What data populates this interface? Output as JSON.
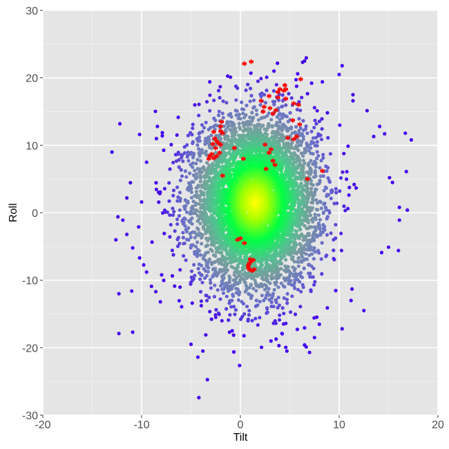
{
  "chart_data": {
    "type": "scatter",
    "title": "",
    "xlabel": "Tilt",
    "ylabel": "Roll",
    "xlim": [
      -20,
      20
    ],
    "ylim": [
      -30,
      30
    ],
    "x_ticks": [
      -20,
      -10,
      0,
      10,
      20
    ],
    "y_ticks": [
      -30,
      -20,
      -10,
      0,
      10,
      20,
      30
    ],
    "x_tick_labels": [
      "-20",
      "-10",
      "0",
      "10",
      "20"
    ],
    "y_tick_labels": [
      "-30",
      "-20",
      "-10",
      "0",
      "10",
      "20",
      "30"
    ],
    "grid": true,
    "legend": "none",
    "colors": {
      "panel": "#e5e5e5",
      "grid_major": "#ffffff",
      "grid_minor": "#f2f2f2",
      "center": "#ffff00",
      "mid": "#00ff44",
      "outer": "#7a9aa0",
      "far": "#4400ee",
      "highlight": "#ff0000"
    },
    "series": [
      {
        "marker": "circle",
        "color_scale": "distance from center: yellow to green to grey-blue to violet",
        "center": [
          1.5,
          1.5
        ],
        "spread": [
          3.4,
          6.8
        ],
        "count": 6000,
        "points": [
          [
            -12.2,
            13.2
          ],
          [
            -12.4,
            -0.6
          ],
          [
            -12.6,
            -4.0
          ],
          [
            -12.3,
            -12.0
          ],
          [
            -12.3,
            -17.9
          ],
          [
            -11.0,
            -11.6
          ],
          [
            -10.9,
            -17.7
          ],
          [
            -11.5,
            2.2
          ],
          [
            -11.9,
            -1.1
          ],
          [
            -11.5,
            -3.2
          ],
          [
            -10.9,
            -5.2
          ],
          [
            -10.3,
            -2.1
          ],
          [
            -10.2,
            11.6
          ],
          [
            -9.5,
            7.5
          ],
          [
            -9.5,
            -8.8
          ],
          [
            -10.0,
            1.6
          ],
          [
            -10.2,
            -6.7
          ],
          [
            -8.5,
            11.0
          ],
          [
            -9.0,
            -10.9
          ],
          [
            -8.1,
            -13.2
          ],
          [
            -4.2,
            -27.4
          ],
          [
            -4.3,
            -21.4
          ],
          [
            -5.0,
            -19.5
          ],
          [
            -3.8,
            -20.5
          ],
          [
            -3.5,
            -18.1
          ],
          [
            -2.5,
            -15.5
          ],
          [
            -1.1,
            -17.7
          ],
          [
            0.4,
            -15.0
          ],
          [
            0.8,
            -15.8
          ],
          [
            3.1,
            -19.0
          ],
          [
            3.9,
            -19.7
          ],
          [
            4.2,
            -17.9
          ],
          [
            4.6,
            -16.4
          ],
          [
            6.5,
            -19.6
          ],
          [
            7.0,
            -20.7
          ],
          [
            7.5,
            -18.5
          ],
          [
            10.3,
            -17.2
          ],
          [
            11.2,
            -13.0
          ],
          [
            11.3,
            -11.3
          ],
          [
            12.5,
            -14.5
          ],
          [
            14.3,
            -5.9
          ],
          [
            15.0,
            -5.1
          ],
          [
            16.0,
            -5.6
          ],
          [
            16.1,
            0.8
          ],
          [
            16.1,
            -1.1
          ],
          [
            16.9,
            0.4
          ],
          [
            15.4,
            4.5
          ],
          [
            16.8,
            6.1
          ],
          [
            15.1,
            5.2
          ],
          [
            16.7,
            11.8
          ],
          [
            17.3,
            10.8
          ],
          [
            14.6,
            11.7
          ],
          [
            14.1,
            12.8
          ],
          [
            13.5,
            11.3
          ],
          [
            11.4,
            17.5
          ],
          [
            11.4,
            16.6
          ],
          [
            10.3,
            21.8
          ],
          [
            10.0,
            20.5
          ],
          [
            8.3,
            19.4
          ],
          [
            6.5,
            22.5
          ],
          [
            6.3,
            22.3
          ],
          [
            5.8,
            20.6
          ],
          [
            3.4,
            21.0
          ],
          [
            -2.2,
            18.1
          ],
          [
            -3.1,
            19.4
          ],
          [
            -8.4,
            12.8
          ],
          [
            -7.9,
            11.4
          ],
          [
            -7.0,
            10.1
          ],
          [
            -13.0,
            9.0
          ],
          [
            -1.0,
            20.1
          ]
        ]
      },
      {
        "marker": "asterisk",
        "color": "#ff0000",
        "points": [
          [
            0.4,
            22.1
          ],
          [
            1.1,
            22.4
          ],
          [
            4.5,
            18.9
          ],
          [
            4.0,
            18.3
          ],
          [
            4.6,
            18.3
          ],
          [
            6.1,
            19.8
          ],
          [
            5.9,
            16.0
          ],
          [
            4.4,
            18.1
          ],
          [
            3.8,
            17.9
          ],
          [
            3.8,
            17.1
          ],
          [
            2.9,
            17.3
          ],
          [
            2.1,
            16.6
          ],
          [
            2.4,
            15.7
          ],
          [
            3.0,
            15.5
          ],
          [
            3.3,
            14.7
          ],
          [
            2.3,
            15.0
          ],
          [
            3.6,
            15.2
          ],
          [
            4.6,
            16.9
          ],
          [
            5.4,
            16.2
          ],
          [
            5.3,
            13.7
          ],
          [
            6.0,
            13.1
          ],
          [
            5.7,
            11.3
          ],
          [
            5.4,
            10.9
          ],
          [
            4.8,
            11.1
          ],
          [
            3.1,
            9.4
          ],
          [
            2.5,
            10.1
          ],
          [
            2.9,
            8.9
          ],
          [
            3.3,
            7.7
          ],
          [
            3.5,
            7.1
          ],
          [
            2.6,
            6.5
          ],
          [
            6.8,
            5.0
          ],
          [
            8.3,
            6.2
          ],
          [
            0.3,
            8.0
          ],
          [
            -0.6,
            9.6
          ],
          [
            -1.8,
            5.5
          ],
          [
            -1.9,
            13.5
          ],
          [
            -2.0,
            12.8
          ],
          [
            -2.0,
            12.1
          ],
          [
            -1.8,
            11.8
          ],
          [
            -2.7,
            12.0
          ],
          [
            -2.6,
            11.0
          ],
          [
            -2.4,
            10.6
          ],
          [
            -2.2,
            10.3
          ],
          [
            -2.0,
            10.1
          ],
          [
            -2.8,
            10.2
          ],
          [
            -2.5,
            9.6
          ],
          [
            -2.9,
            8.7
          ],
          [
            -3.1,
            8.4
          ],
          [
            -3.2,
            8.0
          ],
          [
            -2.7,
            8.1
          ],
          [
            -2.4,
            8.4
          ],
          [
            -2.1,
            8.9
          ],
          [
            0.0,
            -3.8
          ],
          [
            -0.3,
            -4.0
          ],
          [
            0.4,
            -4.5
          ],
          [
            1.1,
            -7.2
          ],
          [
            0.9,
            -7.5
          ],
          [
            0.8,
            -7.8
          ],
          [
            0.8,
            -8.1
          ],
          [
            0.9,
            -8.4
          ],
          [
            1.2,
            -8.6
          ],
          [
            1.4,
            -8.4
          ],
          [
            1.3,
            -7.0
          ],
          [
            1.0,
            -6.9
          ]
        ]
      }
    ]
  }
}
